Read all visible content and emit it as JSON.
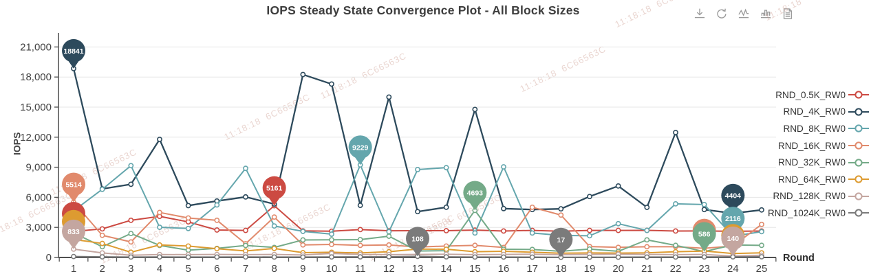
{
  "header": {
    "title": "IOPS Steady State Convergence Plot - All Block Sizes"
  },
  "toolbox": {
    "icons": [
      {
        "name": "save-image-icon",
        "tooltip": "Save as image"
      },
      {
        "name": "restore-icon",
        "tooltip": "Restore"
      },
      {
        "name": "line-chart-icon",
        "tooltip": "Switch to line chart"
      },
      {
        "name": "bar-chart-icon",
        "tooltip": "Switch to bar chart"
      },
      {
        "name": "data-view-icon",
        "tooltip": "Data view"
      }
    ]
  },
  "watermark": {
    "text": "11:18:18  6C66563C"
  },
  "chart_data": {
    "type": "line",
    "title": "IOPS Steady State Convergence Plot - All Block Sizes",
    "xlabel": "Round",
    "ylabel": "IOPS",
    "x": [
      1,
      2,
      3,
      4,
      5,
      6,
      7,
      8,
      9,
      10,
      11,
      12,
      13,
      14,
      15,
      16,
      17,
      18,
      19,
      20,
      21,
      22,
      23,
      24,
      25
    ],
    "ylim": [
      0,
      21000
    ],
    "ytick_labels": [
      "0",
      "3,000",
      "6,000",
      "9,000",
      "12,000",
      "15,000",
      "18,000",
      "21,000"
    ],
    "grid": true,
    "legend_position": "right",
    "series": [
      {
        "name": "RND_0.5K_RW0",
        "color": "#cc4a42",
        "values": [
          2600,
          2850,
          3710,
          4100,
          3550,
          2740,
          2700,
          5161,
          2650,
          2620,
          2780,
          2660,
          2670,
          2670,
          2730,
          2640,
          2700,
          2620,
          2700,
          2700,
          2705,
          2640,
          2645,
          2610,
          2640
        ]
      },
      {
        "name": "RND_4K_RW0",
        "color": "#2d4a5c",
        "values": [
          18841,
          6840,
          7300,
          11780,
          5175,
          5630,
          6040,
          5330,
          18250,
          17300,
          5200,
          16000,
          4570,
          5010,
          14770,
          4875,
          4780,
          4850,
          6080,
          7130,
          5000,
          12465,
          4780,
          4404,
          4740
        ]
      },
      {
        "name": "RND_8K_RW0",
        "color": "#64a6ad",
        "values": [
          4650,
          6800,
          9160,
          3010,
          2890,
          5240,
          8890,
          3140,
          2600,
          2325,
          9229,
          2570,
          8770,
          8960,
          2440,
          9040,
          2440,
          2200,
          2165,
          3370,
          2700,
          5350,
          5280,
          2116,
          2575
        ]
      },
      {
        "name": "RND_16K_RW0",
        "color": "#e18a6c",
        "values": [
          5514,
          2210,
          1550,
          4490,
          3940,
          3710,
          1370,
          4030,
          1250,
          1300,
          1210,
          1250,
          1040,
          1140,
          1210,
          1000,
          5010,
          4230,
          1090,
          1010,
          1070,
          1070,
          914,
          1140,
          3300
        ]
      },
      {
        "name": "RND_32K_RW0",
        "color": "#74aa88",
        "values": [
          2450,
          1070,
          2390,
          1200,
          730,
          910,
          1200,
          1000,
          1750,
          1760,
          1780,
          2120,
          640,
          680,
          4693,
          820,
          800,
          620,
          840,
          615,
          1755,
          1210,
          586,
          1250,
          1210
        ]
      },
      {
        "name": "RND_64K_RW0",
        "color": "#dd9b31",
        "values": [
          1800,
          1400,
          520,
          1250,
          1140,
          870,
          650,
          900,
          480,
          520,
          450,
          570,
          840,
          820,
          570,
          620,
          520,
          430,
          450,
          440,
          460,
          570,
          640,
          390,
          460
        ]
      },
      {
        "name": "RND_128K_RW0",
        "color": "#c4a6a0",
        "values": [
          833,
          455,
          225,
          295,
          280,
          300,
          280,
          300,
          250,
          400,
          300,
          280,
          300,
          320,
          280,
          300,
          320,
          280,
          300,
          320,
          300,
          280,
          300,
          140,
          225
        ]
      },
      {
        "name": "RND_1024K_RW0",
        "color": "#7b7b7b",
        "values": [
          95,
          60,
          45,
          50,
          40,
          45,
          50,
          45,
          40,
          50,
          60,
          70,
          108,
          60,
          45,
          40,
          30,
          17,
          25,
          30,
          40,
          45,
          50,
          60,
          70
        ]
      }
    ],
    "markpoints": [
      {
        "series": "RND_4K_RW0",
        "round": 1,
        "value": 18841,
        "label": "18841"
      },
      {
        "series": "RND_16K_RW0",
        "round": 1,
        "value": 5514,
        "label": "5514"
      },
      {
        "series": "RND_0.5K_RW0",
        "round": 1,
        "value": 2600,
        "label": ""
      },
      {
        "series": "RND_64K_RW0",
        "round": 1,
        "value": 1800,
        "label": ""
      },
      {
        "series": "RND_128K_RW0",
        "round": 1,
        "value": 833,
        "label": "833"
      },
      {
        "series": "RND_0.5K_RW0",
        "round": 8,
        "value": 5161,
        "label": "5161"
      },
      {
        "series": "RND_8K_RW0",
        "round": 11,
        "value": 9229,
        "label": "9229"
      },
      {
        "series": "RND_1024K_RW0",
        "round": 13,
        "value": 108,
        "label": "108"
      },
      {
        "series": "RND_32K_RW0",
        "round": 15,
        "value": 4693,
        "label": "4693"
      },
      {
        "series": "RND_1024K_RW0",
        "round": 18,
        "value": 17,
        "label": "17"
      },
      {
        "series": "RND_16K_RW0",
        "round": 23,
        "value": 914,
        "label": ""
      },
      {
        "series": "RND_32K_RW0",
        "round": 23,
        "value": 586,
        "label": "586"
      },
      {
        "series": "RND_4K_RW0",
        "round": 24,
        "value": 4404,
        "label": "4404"
      },
      {
        "series": "RND_8K_RW0",
        "round": 24,
        "value": 2116,
        "label": "2116"
      },
      {
        "series": "RND_64K_RW0",
        "round": 24,
        "value": 390,
        "label": ""
      },
      {
        "series": "RND_128K_RW0",
        "round": 24,
        "value": 140,
        "label": "140"
      }
    ]
  }
}
